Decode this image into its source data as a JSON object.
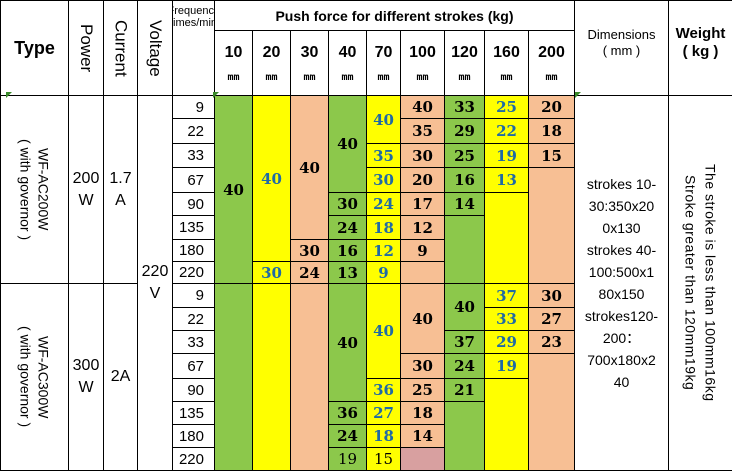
{
  "headers": {
    "type": "Type",
    "power": "Power",
    "current": "Current",
    "voltage": "Voltage",
    "frequency": "Frequency times/min",
    "push_force": "Push force for different strokes (kg)",
    "dimensions": "Dimensions\n( mm )",
    "weight": "Weight\n( kg )"
  },
  "stroke_unit": "mm",
  "strokes": [
    "10",
    "20",
    "30",
    "40",
    "70",
    "100",
    "120",
    "160",
    "200"
  ],
  "models": [
    {
      "type": "WF-AC200W\n( with governor )",
      "power": "200\nW",
      "current": "1.7\nA"
    },
    {
      "type": "WF-AC300W\n( with governor )",
      "power": "300\nW",
      "current": "2A"
    }
  ],
  "voltage": "220\nV",
  "frequencies": [
    "9",
    "22",
    "33",
    "67",
    "90",
    "135",
    "180",
    "220",
    "9",
    "22",
    "33",
    "67",
    "90",
    "135",
    "180",
    "220"
  ],
  "force_values": {
    "ac200": {
      "s10": "40",
      "s20": "40",
      "s20_220": "30",
      "s30": "40",
      "s30_180": "30",
      "s30_220": "24",
      "s40": "40",
      "s40_90": "30",
      "s40_135": "24",
      "s40_180": "16",
      "s40_220": "13",
      "s70": [
        "40",
        "35",
        "30",
        "24",
        "18",
        "12",
        "9"
      ],
      "s100": [
        "40",
        "35",
        "30",
        "20",
        "17",
        "12",
        "9"
      ],
      "s120": [
        "33",
        "29",
        "25",
        "16",
        "14"
      ],
      "s160": [
        "25",
        "22",
        "19",
        "13"
      ],
      "s200": [
        "20",
        "18",
        "15"
      ]
    },
    "ac300": {
      "s40": "40",
      "s40_135": "36",
      "s40_180": "24",
      "s40_220": "19",
      "s70": [
        "40",
        "36",
        "27",
        "18",
        "15"
      ],
      "s100": [
        "40",
        "30",
        "25",
        "18",
        "14"
      ],
      "s120": [
        "40",
        "37",
        "24",
        "21"
      ],
      "s160": [
        "37",
        "33",
        "29",
        "19"
      ],
      "s200": [
        "30",
        "27",
        "23"
      ]
    }
  },
  "dimensions_text": "strokes 10-\n30:350x20\n0x130\nstrokes 40-\n100:500x1\n80x150\nstrokes120-\n200：\n700x180x2\n40",
  "weight_text": "The stroke is less than 100mm16kg\nStroke greater than 120mm19kg",
  "colors": {
    "green": "#8cc84b",
    "yellow": "#ffff00",
    "peach": "#f7bf94",
    "rose": "#d8a0a0",
    "blue_text": "#1f6aa5",
    "border": "#000000"
  }
}
